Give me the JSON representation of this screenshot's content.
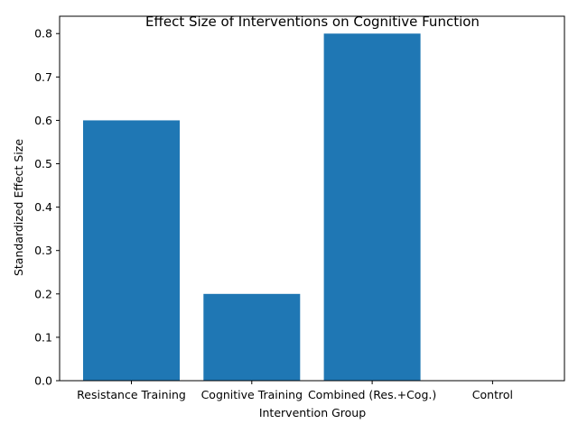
{
  "chart_data": {
    "type": "bar",
    "title": "Effect Size of Interventions on Cognitive Function",
    "xlabel": "Intervention Group",
    "ylabel": "Standardized Effect Size",
    "categories": [
      "Resistance Training",
      "Cognitive Training",
      "Combined (Res.+Cog.)",
      "Control"
    ],
    "values": [
      0.6,
      0.2,
      0.8,
      0.0
    ],
    "ylim": [
      0,
      0.84
    ],
    "yticks": [
      "0.0",
      "0.1",
      "0.2",
      "0.3",
      "0.4",
      "0.5",
      "0.6",
      "0.7",
      "0.8"
    ],
    "bar_color": "#1f77b4",
    "grid": false,
    "legend": "none"
  }
}
